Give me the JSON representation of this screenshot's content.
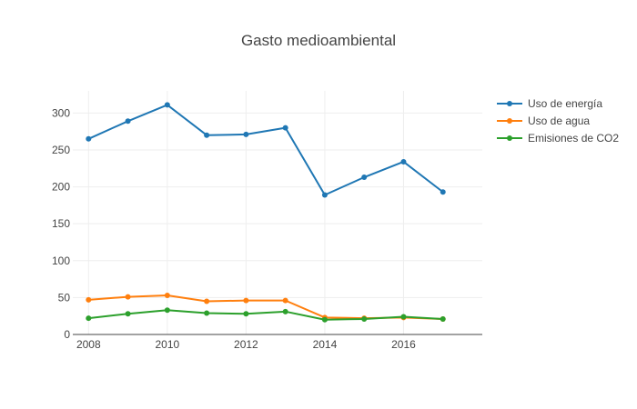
{
  "chart_data": {
    "type": "line",
    "title": "Gasto medioambiental",
    "xlabel": "",
    "ylabel": "",
    "x": [
      2008,
      2009,
      2010,
      2011,
      2012,
      2013,
      2014,
      2015,
      2016,
      2017
    ],
    "xlim": [
      2007.6,
      2018.0
    ],
    "ylim": [
      0,
      330
    ],
    "xticks": [
      2008,
      2010,
      2012,
      2014,
      2016
    ],
    "yticks": [
      0,
      50,
      100,
      150,
      200,
      250,
      300
    ],
    "grid": true,
    "legend_position": "top-right",
    "series": [
      {
        "name": "Uso de energía",
        "color": "#1f77b4",
        "values": [
          265,
          289,
          311,
          270,
          271,
          280,
          189,
          213,
          234,
          193
        ]
      },
      {
        "name": "Uso de agua",
        "color": "#ff7f0e",
        "values": [
          47,
          51,
          53,
          45,
          46,
          46,
          23,
          22,
          23,
          21
        ]
      },
      {
        "name": "Emisiones de CO2",
        "color": "#2ca02c",
        "values": [
          22,
          28,
          33,
          29,
          28,
          31,
          20,
          21,
          24,
          21
        ]
      }
    ]
  }
}
